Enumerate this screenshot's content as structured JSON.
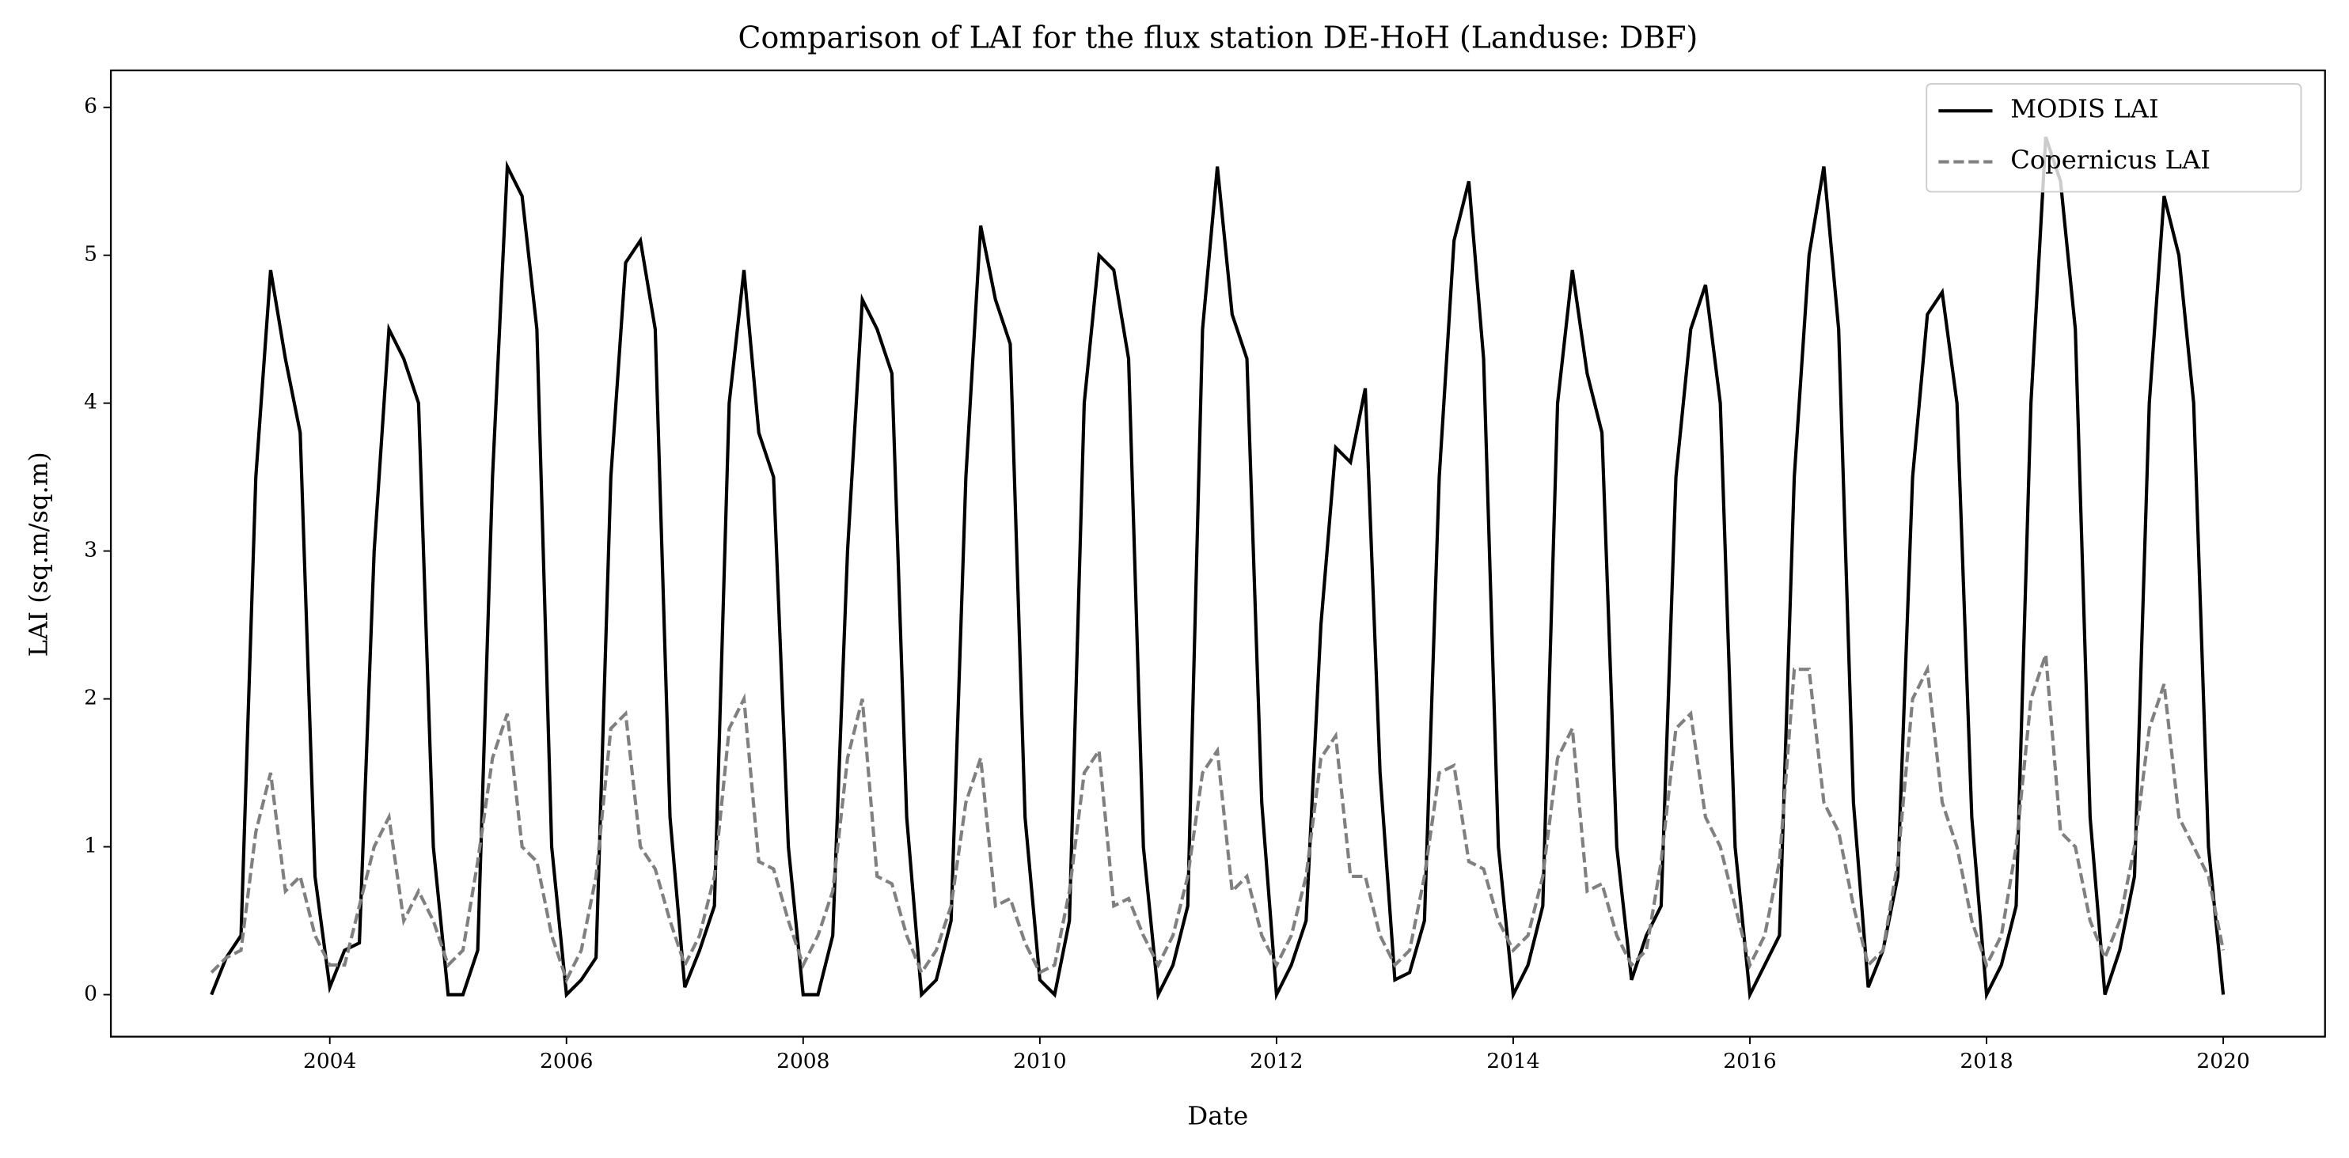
{
  "chart_data": {
    "type": "line",
    "title": "Comparison of LAI for the flux station DE-HoH (Landuse: DBF)",
    "xlabel": "Date",
    "ylabel": "LAI (sq.m/sq.m)",
    "x": [
      2003,
      2003.125,
      2003.25,
      2003.375,
      2003.5,
      2003.625,
      2003.75,
      2003.875,
      2004,
      2004.125,
      2004.25,
      2004.375,
      2004.5,
      2004.625,
      2004.75,
      2004.875,
      2005,
      2005.125,
      2005.25,
      2005.375,
      2005.5,
      2005.625,
      2005.75,
      2005.875,
      2006,
      2006.125,
      2006.25,
      2006.375,
      2006.5,
      2006.625,
      2006.75,
      2006.875,
      2007,
      2007.125,
      2007.25,
      2007.375,
      2007.5,
      2007.625,
      2007.75,
      2007.875,
      2008,
      2008.125,
      2008.25,
      2008.375,
      2008.5,
      2008.625,
      2008.75,
      2008.875,
      2009,
      2009.125,
      2009.25,
      2009.375,
      2009.5,
      2009.625,
      2009.75,
      2009.875,
      2010,
      2010.125,
      2010.25,
      2010.375,
      2010.5,
      2010.625,
      2010.75,
      2010.875,
      2011,
      2011.125,
      2011.25,
      2011.375,
      2011.5,
      2011.625,
      2011.75,
      2011.875,
      2012,
      2012.125,
      2012.25,
      2012.375,
      2012.5,
      2012.625,
      2012.75,
      2012.875,
      2013,
      2013.125,
      2013.25,
      2013.375,
      2013.5,
      2013.625,
      2013.75,
      2013.875,
      2014,
      2014.125,
      2014.25,
      2014.375,
      2014.5,
      2014.625,
      2014.75,
      2014.875,
      2015,
      2015.125,
      2015.25,
      2015.375,
      2015.5,
      2015.625,
      2015.75,
      2015.875,
      2016,
      2016.125,
      2016.25,
      2016.375,
      2016.5,
      2016.625,
      2016.75,
      2016.875,
      2017,
      2017.125,
      2017.25,
      2017.375,
      2017.5,
      2017.625,
      2017.75,
      2017.875,
      2018,
      2018.125,
      2018.25,
      2018.375,
      2018.5,
      2018.625,
      2018.75,
      2018.875,
      2019,
      2019.125,
      2019.25,
      2019.375,
      2019.5,
      2019.625,
      2019.75,
      2019.875,
      2020
    ],
    "series": [
      {
        "name": "MODIS LAI",
        "color": "#000000",
        "dash": "solid",
        "values": [
          0,
          0.25,
          0.4,
          3.5,
          4.9,
          4.3,
          3.8,
          0.8,
          0.05,
          0.3,
          0.35,
          3.0,
          4.5,
          4.3,
          4.0,
          1.0,
          0,
          0,
          0.3,
          3.5,
          5.6,
          5.4,
          4.5,
          1.0,
          0,
          0.1,
          0.25,
          3.5,
          4.95,
          5.1,
          4.5,
          1.2,
          0.05,
          0.3,
          0.6,
          4.0,
          4.9,
          3.8,
          3.5,
          1.0,
          0,
          0,
          0.4,
          3.0,
          4.7,
          4.5,
          4.2,
          1.2,
          0,
          0.1,
          0.5,
          3.5,
          5.2,
          4.7,
          4.4,
          1.2,
          0.1,
          0,
          0.5,
          4.0,
          5.0,
          4.9,
          4.3,
          1.0,
          0,
          0.2,
          0.6,
          4.5,
          5.6,
          4.6,
          4.3,
          1.3,
          0,
          0.2,
          0.5,
          2.5,
          3.7,
          3.6,
          4.1,
          1.5,
          0.1,
          0.15,
          0.5,
          3.5,
          5.1,
          5.5,
          4.3,
          1.0,
          0,
          0.2,
          0.6,
          4.0,
          4.9,
          4.2,
          3.8,
          1.0,
          0.1,
          0.4,
          0.6,
          3.5,
          4.5,
          4.8,
          4.0,
          1.0,
          0,
          0.2,
          0.4,
          3.5,
          5.0,
          5.6,
          4.5,
          1.3,
          0.05,
          0.3,
          0.8,
          3.5,
          4.6,
          4.75,
          4.0,
          1.2,
          0,
          0.2,
          0.6,
          4.0,
          5.8,
          5.5,
          4.5,
          1.2,
          0,
          0.3,
          0.8,
          4.0,
          5.4,
          5.0,
          4.0,
          1.0,
          0
        ]
      },
      {
        "name": "Copernicus LAI",
        "color": "#808080",
        "dash": "dashed",
        "values": [
          0.15,
          0.25,
          0.3,
          1.1,
          1.5,
          0.7,
          0.8,
          0.4,
          0.2,
          0.2,
          0.6,
          1.0,
          1.2,
          0.5,
          0.7,
          0.5,
          0.2,
          0.3,
          0.9,
          1.6,
          1.9,
          1.0,
          0.9,
          0.4,
          0.1,
          0.3,
          0.8,
          1.8,
          1.9,
          1.0,
          0.85,
          0.5,
          0.2,
          0.4,
          0.8,
          1.8,
          2.0,
          0.9,
          0.85,
          0.5,
          0.2,
          0.4,
          0.7,
          1.6,
          2.0,
          0.8,
          0.75,
          0.4,
          0.15,
          0.3,
          0.6,
          1.3,
          1.6,
          0.6,
          0.65,
          0.35,
          0.15,
          0.2,
          0.7,
          1.5,
          1.65,
          0.6,
          0.65,
          0.4,
          0.2,
          0.4,
          0.8,
          1.5,
          1.65,
          0.7,
          0.8,
          0.4,
          0.2,
          0.4,
          0.8,
          1.6,
          1.75,
          0.8,
          0.8,
          0.4,
          0.2,
          0.3,
          0.8,
          1.5,
          1.55,
          0.9,
          0.85,
          0.5,
          0.3,
          0.4,
          0.8,
          1.6,
          1.8,
          0.7,
          0.75,
          0.4,
          0.2,
          0.3,
          0.9,
          1.8,
          1.9,
          1.2,
          1.0,
          0.6,
          0.2,
          0.4,
          0.9,
          2.2,
          2.2,
          1.3,
          1.1,
          0.6,
          0.2,
          0.3,
          0.9,
          2.0,
          2.2,
          1.3,
          1.0,
          0.5,
          0.2,
          0.4,
          1.0,
          2.0,
          2.3,
          1.1,
          1.0,
          0.5,
          0.25,
          0.5,
          1.0,
          1.8,
          2.1,
          1.2,
          1.0,
          0.8,
          0.3
        ]
      }
    ],
    "xlim": [
      2002.15,
      2020.86
    ],
    "xticks": [
      2004,
      2006,
      2008,
      2010,
      2012,
      2014,
      2016,
      2018,
      2020
    ],
    "ylim": [
      -0.284,
      6.25
    ],
    "yticks": [
      0,
      1,
      2,
      3,
      4,
      5,
      6
    ],
    "grid": false,
    "legend": "upper right"
  }
}
